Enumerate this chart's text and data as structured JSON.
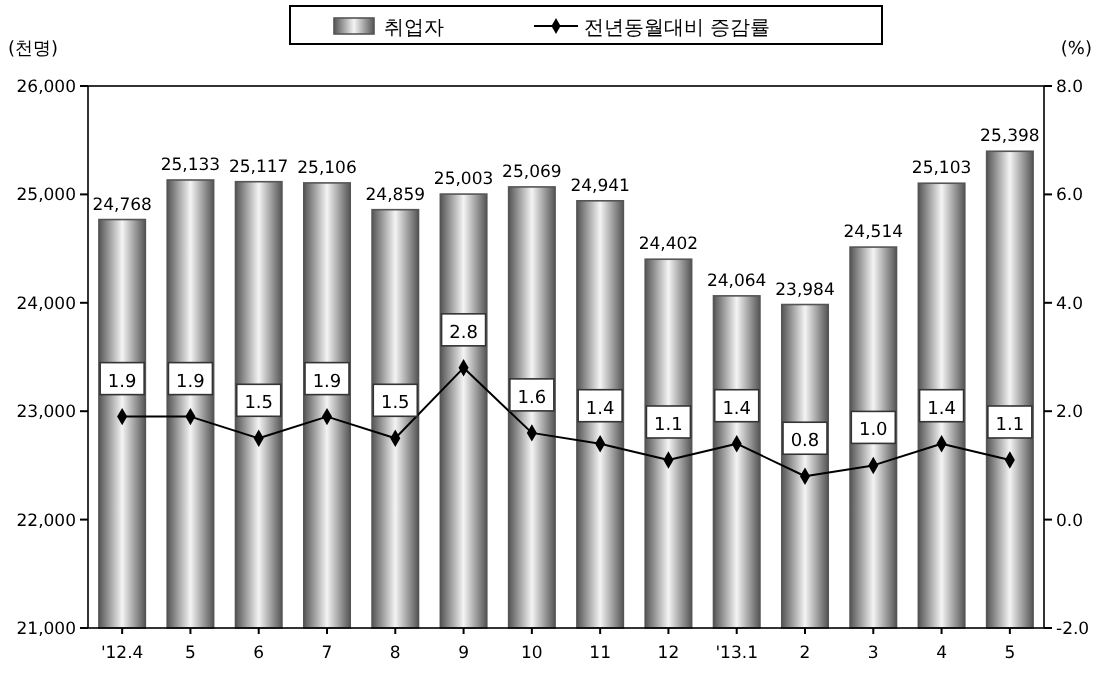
{
  "chart_data": {
    "type": "bar",
    "categories": [
      "'12.4",
      "5",
      "6",
      "7",
      "8",
      "9",
      "10",
      "11",
      "12",
      "'13.1",
      "2",
      "3",
      "4",
      "5"
    ],
    "series": [
      {
        "name": "취업자",
        "color": "#555555",
        "values": [
          24768,
          25133,
          25117,
          25106,
          24859,
          25003,
          25069,
          24941,
          24402,
          24064,
          23984,
          24514,
          25103,
          25398
        ],
        "value_labels": [
          "24,768",
          "25,133",
          "25,117",
          "25,106",
          "24,859",
          "25,003",
          "25,069",
          "24,941",
          "24,402",
          "24,064",
          "23,984",
          "24,514",
          "25,103",
          "25,398"
        ]
      },
      {
        "name": "전년동월대비 증감률",
        "type": "line",
        "axis": "y2",
        "color": "#000000",
        "marker": "diamond",
        "values": [
          1.9,
          1.9,
          1.5,
          1.9,
          1.5,
          2.8,
          1.6,
          1.4,
          1.1,
          1.4,
          0.8,
          1.0,
          1.4,
          1.1
        ],
        "value_labels": [
          "1.9",
          "1.9",
          "1.5",
          "1.9",
          "1.5",
          "2.8",
          "1.6",
          "1.4",
          "1.1",
          "1.4",
          "0.8",
          "1.0",
          "1.4",
          "1.1"
        ]
      }
    ],
    "ylabel": "(천명)",
    "y2label": "(%)",
    "ylim": [
      21000,
      26000
    ],
    "yticks": [
      {
        "value": 21000,
        "label": "21,000"
      },
      {
        "value": 22000,
        "label": "22,000"
      },
      {
        "value": 23000,
        "label": "23,000"
      },
      {
        "value": 24000,
        "label": "24,000"
      },
      {
        "value": 25000,
        "label": "25,000"
      },
      {
        "value": 26000,
        "label": "26,000"
      }
    ],
    "y2lim": [
      -2,
      8
    ],
    "y2ticks": [
      {
        "value": -2,
        "label": "-2.0"
      },
      {
        "value": 0,
        "label": "0.0"
      },
      {
        "value": 2,
        "label": "2.0"
      },
      {
        "value": 4,
        "label": "4.0"
      },
      {
        "value": 6,
        "label": "6.0"
      },
      {
        "value": 8,
        "label": "8.0"
      }
    ],
    "legend": "top",
    "grid": false
  }
}
